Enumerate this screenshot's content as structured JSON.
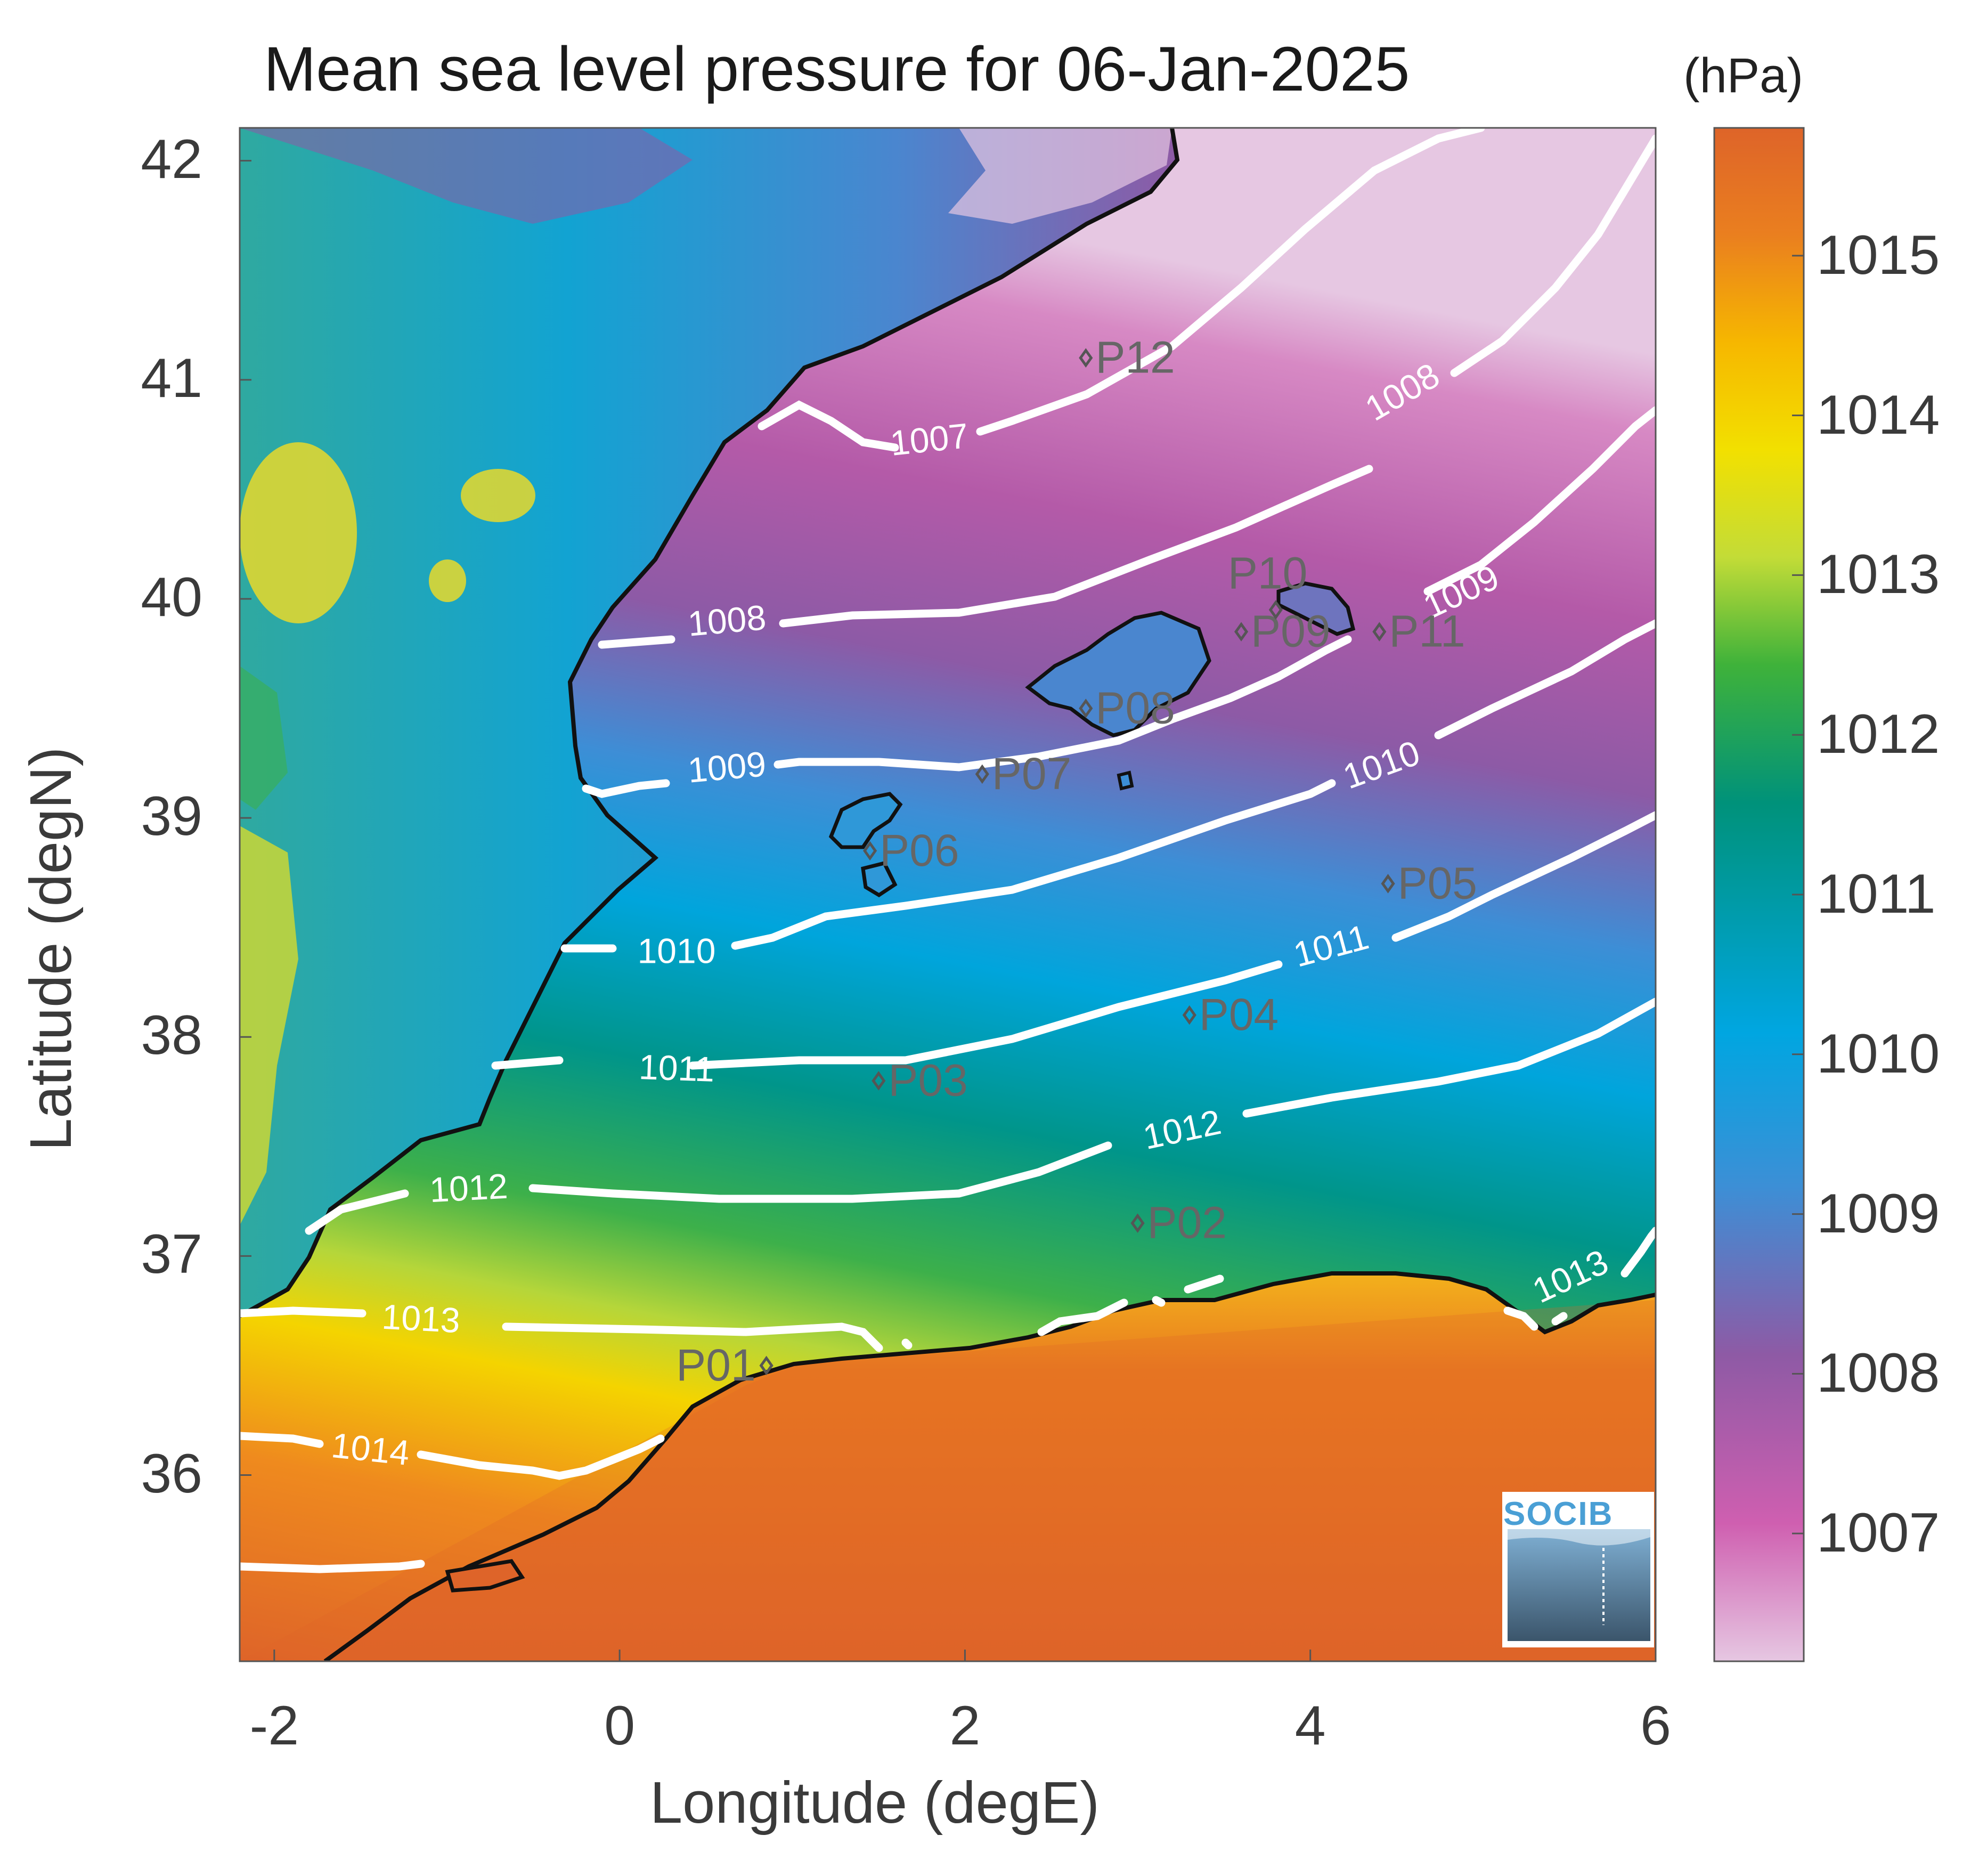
{
  "title": "Mean sea level pressure for 06-Jan-2025",
  "colorbar": {
    "unit": "(hPa)",
    "ticks": [
      "1007",
      "1008",
      "1009",
      "1010",
      "1011",
      "1012",
      "1013",
      "1014",
      "1015"
    ],
    "range": [
      1006.2,
      1015.8
    ],
    "colors": [
      "#e6c7e2",
      "#cf5fb0",
      "#8e5aa5",
      "#3c8fd6",
      "#00a6e1",
      "#00927a",
      "#3fb23a",
      "#c3dc37",
      "#f2e000",
      "#f6b700",
      "#ea7f1f",
      "#de6429"
    ]
  },
  "axes": {
    "xlabel": "Longitude (degE)",
    "ylabel": "Latitude (degN)",
    "xticks": [
      "-2",
      "0",
      "2",
      "4",
      "6"
    ],
    "yticks": [
      "42",
      "41",
      "40",
      "39",
      "38",
      "37",
      "36"
    ],
    "xlim": [
      -2.2,
      6.0
    ],
    "ylim": [
      35.15,
      42.15
    ]
  },
  "contour_labels": [
    "1007",
    "1008",
    "1008",
    "1009",
    "1009",
    "1010",
    "1010",
    "1011",
    "1011",
    "1012",
    "1012",
    "1013",
    "1013",
    "1014"
  ],
  "stations": [
    {
      "name": "P01",
      "lon": 0.85,
      "lat": 36.5
    },
    {
      "name": "P02",
      "lon": 3.0,
      "lat": 37.15
    },
    {
      "name": "P03",
      "lon": 1.5,
      "lat": 37.8
    },
    {
      "name": "P04",
      "lon": 3.3,
      "lat": 38.1
    },
    {
      "name": "P05",
      "lon": 4.45,
      "lat": 38.7
    },
    {
      "name": "P06",
      "lon": 1.45,
      "lat": 38.85
    },
    {
      "name": "P07",
      "lon": 2.1,
      "lat": 39.2
    },
    {
      "name": "P08",
      "lon": 2.7,
      "lat": 39.5
    },
    {
      "name": "P09",
      "lon": 3.6,
      "lat": 39.85
    },
    {
      "name": "P10",
      "lon": 3.8,
      "lat": 39.95
    },
    {
      "name": "P11",
      "lon": 4.4,
      "lat": 39.85
    },
    {
      "name": "P12",
      "lon": 2.7,
      "lat": 41.1
    }
  ],
  "logo": "SOCIB"
}
